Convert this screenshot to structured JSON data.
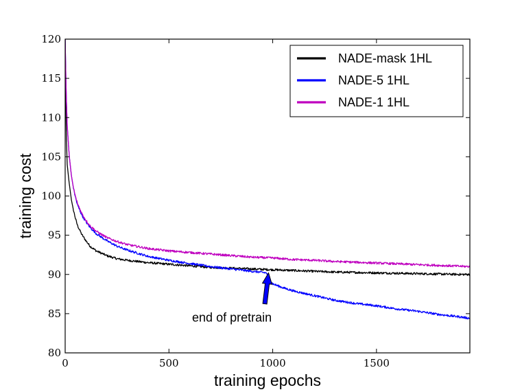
{
  "chart_data": {
    "type": "line",
    "title": "",
    "xlabel": "training epochs",
    "ylabel": "training cost",
    "xlim": [
      0,
      1950
    ],
    "ylim": [
      80,
      120
    ],
    "xticks": [
      0,
      500,
      1000,
      1500
    ],
    "yticks": [
      80,
      85,
      90,
      95,
      100,
      105,
      110,
      115,
      120
    ],
    "legend_position": "top-right",
    "series": [
      {
        "name": "NADE-mask 1HL",
        "color": "#000000",
        "x": [
          0,
          5,
          10,
          20,
          30,
          40,
          50,
          60,
          80,
          100,
          120,
          150,
          200,
          250,
          300,
          400,
          500,
          600,
          700,
          800,
          900,
          1000,
          1100,
          1200,
          1300,
          1400,
          1500,
          1600,
          1700,
          1800,
          1900,
          1950
        ],
        "y": [
          120,
          108,
          104,
          101.5,
          99.5,
          98.2,
          97.1,
          96.2,
          95.1,
          94.3,
          93.6,
          93,
          92.4,
          92,
          91.8,
          91.5,
          91.3,
          91.1,
          90.9,
          90.8,
          90.7,
          90.6,
          90.5,
          90.4,
          90.3,
          90.25,
          90.2,
          90.15,
          90.1,
          90.05,
          90,
          90
        ]
      },
      {
        "name": "NADE-5 1HL",
        "color": "#0000ff",
        "x": [
          0,
          5,
          10,
          20,
          30,
          40,
          50,
          60,
          80,
          100,
          120,
          150,
          200,
          250,
          300,
          400,
          500,
          600,
          700,
          800,
          900,
          970,
          985,
          1000,
          1050,
          1100,
          1200,
          1300,
          1400,
          1500,
          1600,
          1700,
          1800,
          1900,
          1950
        ],
        "y": [
          120,
          113,
          109,
          105,
          102.6,
          101,
          99.8,
          98.8,
          97.6,
          96.7,
          96,
          95.2,
          94.3,
          93.6,
          93.1,
          92.3,
          91.8,
          91.4,
          91,
          90.7,
          90.4,
          90.2,
          89.4,
          88.8,
          88.3,
          87.9,
          87.3,
          86.7,
          86.3,
          86,
          85.6,
          85.3,
          84.9,
          84.6,
          84.4
        ]
      },
      {
        "name": "NADE-1 1HL",
        "color": "#bf00bf",
        "x": [
          0,
          5,
          10,
          20,
          30,
          40,
          50,
          60,
          80,
          100,
          120,
          150,
          200,
          250,
          300,
          400,
          500,
          600,
          700,
          800,
          900,
          1000,
          1100,
          1200,
          1300,
          1400,
          1500,
          1600,
          1700,
          1800,
          1900,
          1950
        ],
        "y": [
          120,
          113,
          109,
          105,
          102.6,
          101,
          99.9,
          99,
          97.8,
          96.9,
          96.2,
          95.5,
          94.7,
          94.2,
          93.8,
          93.3,
          93,
          92.8,
          92.6,
          92.4,
          92.2,
          92.1,
          91.9,
          91.8,
          91.65,
          91.55,
          91.45,
          91.35,
          91.25,
          91.15,
          91.05,
          91
        ]
      }
    ],
    "annotations": [
      {
        "text": "end of pretrain",
        "x": 810,
        "y": 84.5,
        "arrow_to_x": 980,
        "arrow_to_y": 90.2
      }
    ]
  }
}
